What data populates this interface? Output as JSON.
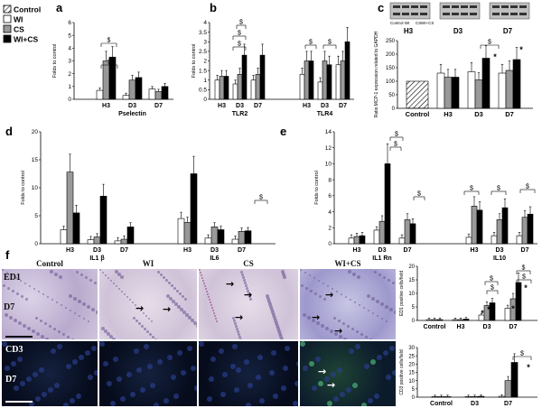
{
  "legend": [
    {
      "label": "Control",
      "fill": "hatch"
    },
    {
      "label": "WI",
      "fill": "#ffffff"
    },
    {
      "label": "CS",
      "fill": "#999999"
    },
    {
      "label": "WI+CS",
      "fill": "#000000"
    }
  ],
  "panels": {
    "a": "a",
    "b": "b",
    "c": "c",
    "d": "d",
    "e": "e",
    "f": "f"
  },
  "colors": {
    "wi": "#ffffff",
    "cs": "#999999",
    "wics": "#000000",
    "control": "#cccccc",
    "axis": "#000000"
  },
  "sig_marker": "$",
  "star_marker": "*",
  "chart_data": [
    {
      "id": "a",
      "type": "bar",
      "ylabel": "Folds to control",
      "ylim": [
        0,
        6
      ],
      "yticks": [
        0,
        1,
        2,
        3,
        4,
        5,
        6
      ],
      "xlabel": "Pselectin",
      "categories": [
        "H3",
        "D3",
        "D7"
      ],
      "series": [
        {
          "name": "WI",
          "values": [
            0.7,
            0.3,
            0.8
          ]
        },
        {
          "name": "CS",
          "values": [
            3.0,
            1.5,
            0.6
          ]
        },
        {
          "name": "WI+CS",
          "values": [
            3.3,
            1.7,
            1.0
          ]
        }
      ]
    },
    {
      "id": "b",
      "type": "bar",
      "ylabel": "Folds to control",
      "ylim": [
        0,
        4
      ],
      "yticks": [
        0,
        0.5,
        1,
        1.5,
        2,
        2.5,
        3,
        3.5,
        4
      ],
      "groups": [
        {
          "label": "TLR2",
          "categories": [
            "H3",
            "D3",
            "D7"
          ],
          "series": [
            {
              "name": "WI",
              "values": [
                1.0,
                0.8,
                1.0
              ]
            },
            {
              "name": "CS",
              "values": [
                1.2,
                1.3,
                1.3
              ]
            },
            {
              "name": "WI+CS",
              "values": [
                1.2,
                2.3,
                2.3
              ]
            }
          ]
        },
        {
          "label": "TLR4",
          "categories": [
            "H3",
            "D3",
            "D7"
          ],
          "series": [
            {
              "name": "WI",
              "values": [
                1.3,
                0.9,
                1.8
              ]
            },
            {
              "name": "CS",
              "values": [
                2.0,
                2.0,
                2.0
              ]
            },
            {
              "name": "WI+CS",
              "values": [
                2.0,
                1.8,
                3.0
              ]
            }
          ]
        }
      ]
    },
    {
      "id": "c",
      "type": "bar",
      "ylabel": "Ratio MCP-1 expression related to GAPDH",
      "ylim": [
        0,
        250
      ],
      "yticks": [
        0,
        50,
        100,
        150,
        200,
        250
      ],
      "categories": [
        "Control",
        "H3",
        "D3",
        "D7"
      ],
      "control_value": 100,
      "blot_labels": [
        [
          "H3",
          "D3",
          "D7"
        ],
        [
          "Control WI",
          "CS",
          "WI+CS"
        ]
      ],
      "series": [
        {
          "name": "WI",
          "values": [
            null,
            130,
            135,
            130
          ]
        },
        {
          "name": "CS",
          "values": [
            null,
            115,
            105,
            140
          ]
        },
        {
          "name": "WI+CS",
          "values": [
            null,
            115,
            185,
            180
          ]
        }
      ]
    },
    {
      "id": "d",
      "type": "bar",
      "ylabel": "Folds to control",
      "ylim": [
        0,
        20
      ],
      "yticks": [
        0,
        5,
        10,
        15,
        20
      ],
      "groups": [
        {
          "label": "IL1 β",
          "categories": [
            "H3",
            "D3",
            "D7"
          ],
          "series": [
            {
              "name": "WI",
              "values": [
                2.5,
                0.7,
                0.5
              ]
            },
            {
              "name": "CS",
              "values": [
                12.8,
                1.2,
                0.8
              ]
            },
            {
              "name": "WI+CS",
              "values": [
                5.5,
                8.5,
                3.0
              ]
            }
          ]
        },
        {
          "label": "IL6",
          "categories": [
            "H3",
            "D3",
            "D7"
          ],
          "series": [
            {
              "name": "WI",
              "values": [
                4.5,
                1.0,
                0.8
              ]
            },
            {
              "name": "CS",
              "values": [
                3.8,
                3.0,
                2.2
              ]
            },
            {
              "name": "WI+CS",
              "values": [
                12.5,
                2.5,
                2.3
              ]
            }
          ]
        }
      ]
    },
    {
      "id": "e",
      "type": "bar",
      "ylabel": "Folds to control",
      "ylim": [
        0,
        14
      ],
      "yticks": [
        0,
        2,
        4,
        6,
        8,
        10,
        12,
        14
      ],
      "groups": [
        {
          "label": "IL1 Rn",
          "categories": [
            "H3",
            "D3",
            "D7"
          ],
          "series": [
            {
              "name": "WI",
              "values": [
                0.7,
                1.7,
                0.7
              ]
            },
            {
              "name": "CS",
              "values": [
                0.9,
                2.8,
                3.0
              ]
            },
            {
              "name": "WI+CS",
              "values": [
                1.0,
                10.0,
                2.5
              ]
            }
          ]
        },
        {
          "label": "IL10",
          "categories": [
            "H3",
            "D3",
            "D7"
          ],
          "series": [
            {
              "name": "WI",
              "values": [
                0.8,
                1.0,
                1.0
              ]
            },
            {
              "name": "CS",
              "values": [
                4.7,
                3.0,
                3.3
              ]
            },
            {
              "name": "WI+CS",
              "values": [
                4.2,
                4.5,
                3.7
              ]
            }
          ]
        }
      ]
    },
    {
      "id": "f1",
      "type": "bar",
      "ylabel": "ED1 positive cells/field",
      "ylim": [
        0,
        20
      ],
      "yticks": [
        0,
        5,
        10,
        15,
        20
      ],
      "categories": [
        "Control",
        "H3",
        "D3",
        "D7"
      ],
      "series": [
        {
          "name": "WI",
          "values": [
            0.3,
            0.3,
            2.0,
            4.5
          ]
        },
        {
          "name": "CS",
          "values": [
            0.3,
            0.3,
            5.5,
            8.0
          ]
        },
        {
          "name": "WI+CS",
          "values": [
            0.3,
            0.5,
            6.5,
            14.0
          ]
        }
      ]
    },
    {
      "id": "f2",
      "type": "bar",
      "ylabel": "CD3 positive cells/field",
      "ylim": [
        0,
        30
      ],
      "yticks": [
        0,
        5,
        10,
        15,
        20,
        25,
        30
      ],
      "categories": [
        "Control",
        "D3",
        "D7"
      ],
      "series": [
        {
          "name": "WI",
          "values": [
            0.3,
            0.3,
            0.5
          ]
        },
        {
          "name": "CS",
          "values": [
            0.3,
            0.3,
            10.0
          ]
        },
        {
          "name": "WI+CS",
          "values": [
            0.3,
            0.5,
            21.0
          ]
        }
      ]
    }
  ],
  "micrographs": {
    "columns": [
      "Control",
      "WI",
      "CS",
      "WI+CS"
    ],
    "row1_labels": [
      "ED1",
      "D7"
    ],
    "row2_labels": [
      "CD3",
      "D7"
    ]
  }
}
